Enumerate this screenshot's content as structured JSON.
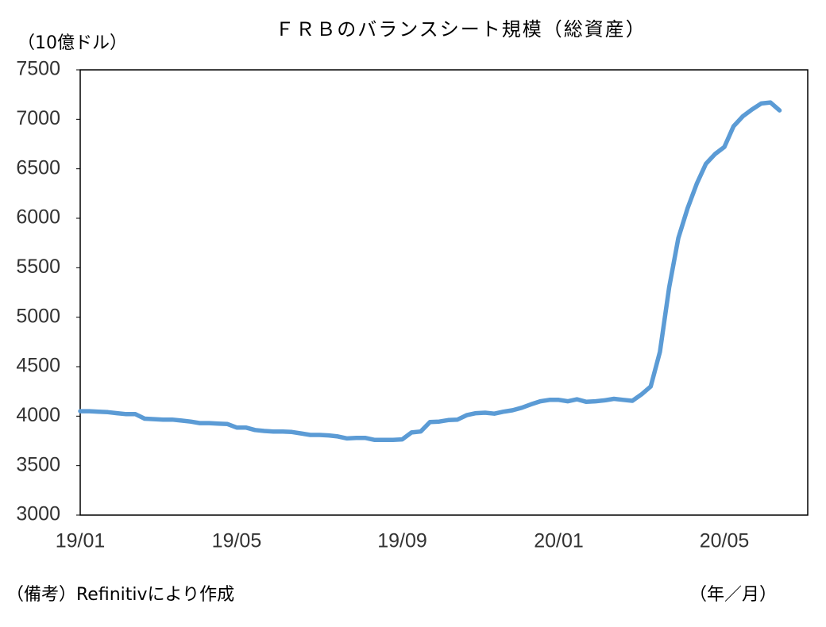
{
  "chart_data": {
    "type": "line",
    "title": "ＦＲＢのバランスシート規模（総資産）",
    "y_label": "（10億ドル）",
    "x_label": "（年／月）",
    "note": "（備考）Refinitivにより作成",
    "color": "#5b9bd5",
    "categories": [
      "19/01",
      null,
      null,
      null,
      null,
      null,
      null,
      null,
      null,
      null,
      null,
      null,
      null,
      null,
      null,
      null,
      null,
      "19/05",
      null,
      null,
      null,
      null,
      null,
      null,
      null,
      null,
      null,
      null,
      null,
      null,
      null,
      null,
      null,
      null,
      null,
      "19/09",
      null,
      null,
      null,
      null,
      null,
      null,
      null,
      null,
      null,
      null,
      null,
      null,
      null,
      null,
      null,
      null,
      "20/01",
      null,
      null,
      null,
      null,
      null,
      null,
      null,
      null,
      null,
      null,
      null,
      null,
      null,
      null,
      null,
      null,
      null,
      "20/05",
      null,
      null,
      null,
      null,
      null,
      null
    ],
    "values": [
      4050,
      4050,
      4045,
      4040,
      4030,
      4020,
      4020,
      3975,
      3970,
      3965,
      3965,
      3955,
      3945,
      3930,
      3930,
      3925,
      3920,
      3885,
      3885,
      3860,
      3850,
      3845,
      3845,
      3840,
      3825,
      3810,
      3810,
      3805,
      3795,
      3775,
      3780,
      3780,
      3760,
      3760,
      3760,
      3765,
      3835,
      3845,
      3940,
      3945,
      3960,
      3965,
      4010,
      4030,
      4035,
      4025,
      4045,
      4060,
      4085,
      4120,
      4150,
      4165,
      4165,
      4150,
      4170,
      4145,
      4150,
      4160,
      4175,
      4165,
      4155,
      4220,
      4300,
      4650,
      5300,
      5800,
      6100,
      6350,
      6550,
      6650,
      6720,
      6930,
      7030,
      7100,
      7160,
      7170,
      7090
    ],
    "ylim": [
      3000,
      7500
    ],
    "yticks": [
      3000,
      3500,
      4000,
      4500,
      5000,
      5500,
      6000,
      6500,
      7000,
      7500
    ],
    "grid": false
  }
}
